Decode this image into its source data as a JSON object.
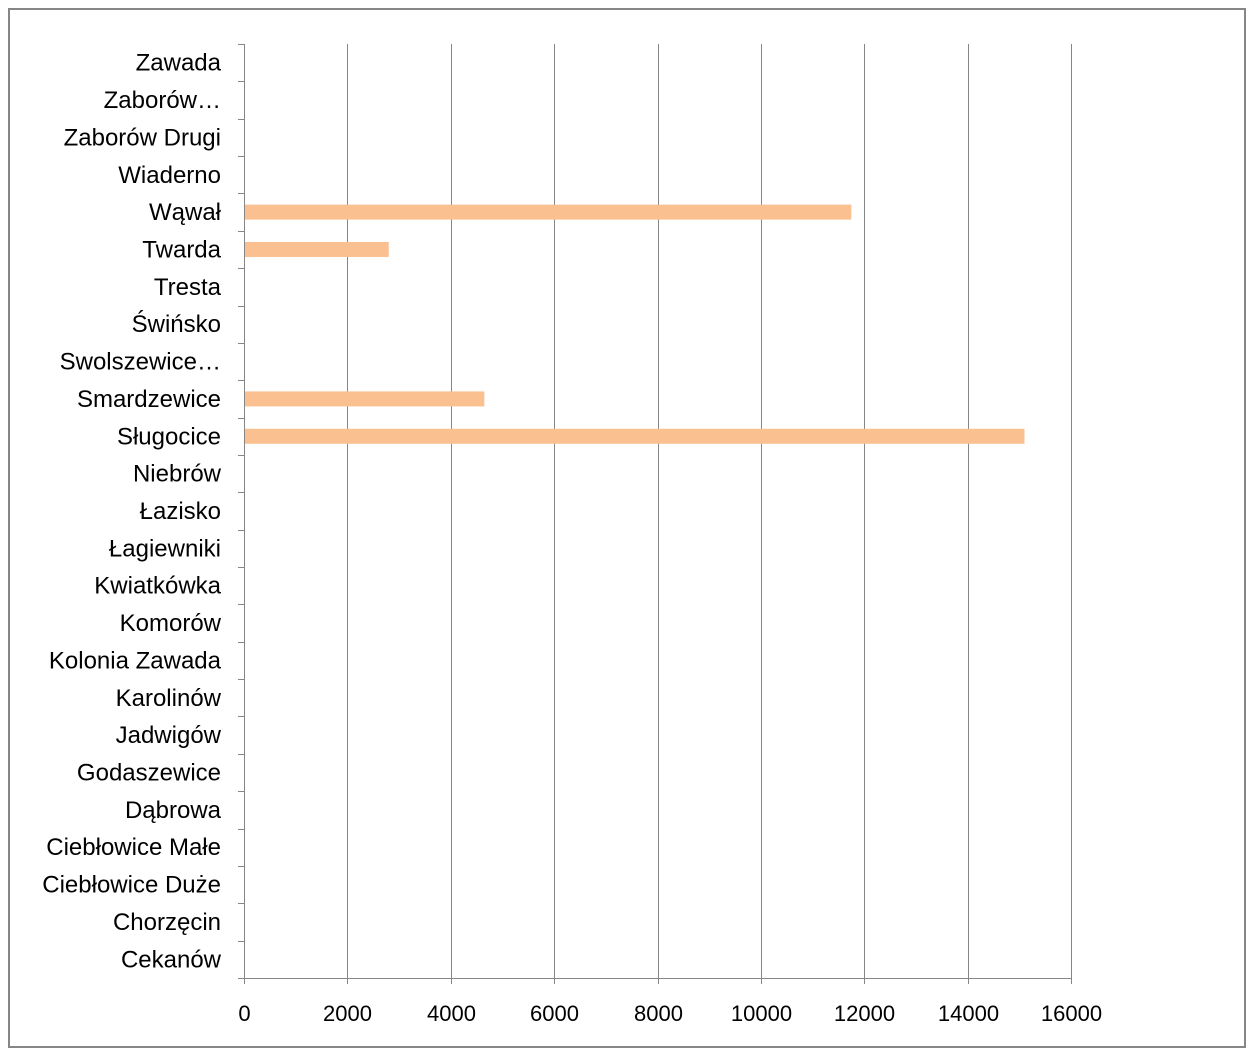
{
  "chart_data": {
    "type": "bar",
    "orientation": "horizontal",
    "categories": [
      "Cekanów",
      "Chorzęcin",
      "Ciebłowice Duże",
      "Ciebłowice Małe",
      "Dąbrowa",
      "Godaszewice",
      "Jadwigów",
      "Karolinów",
      "Kolonia Zawada",
      "Komorów",
      "Kwiatkówka",
      "Łagiewniki",
      "Łazisko",
      "Niebrów",
      "Sługocice",
      "Smardzewice",
      "Swolszewice…",
      "Świńsko",
      "Tresta",
      "Twarda",
      "Wąwał",
      "Wiaderno",
      "Zaborów Drugi",
      "Zaborów…",
      "Zawada"
    ],
    "values": [
      0,
      0,
      0,
      0,
      0,
      0,
      0,
      0,
      0,
      0,
      0,
      0,
      0,
      0,
      15100,
      4650,
      0,
      0,
      0,
      2800,
      11750,
      0,
      0,
      0,
      0
    ],
    "xlim": [
      0,
      16000
    ],
    "xticks": [
      0,
      2000,
      4000,
      6000,
      8000,
      10000,
      12000,
      14000,
      16000
    ],
    "title": "",
    "xlabel": "",
    "ylabel": "",
    "grid": "vertical",
    "legend": "none",
    "colors": {
      "bar": "#FAC090",
      "grid": "#868686",
      "axis": "#868686",
      "frame": "#868686",
      "text": "#000000"
    }
  }
}
